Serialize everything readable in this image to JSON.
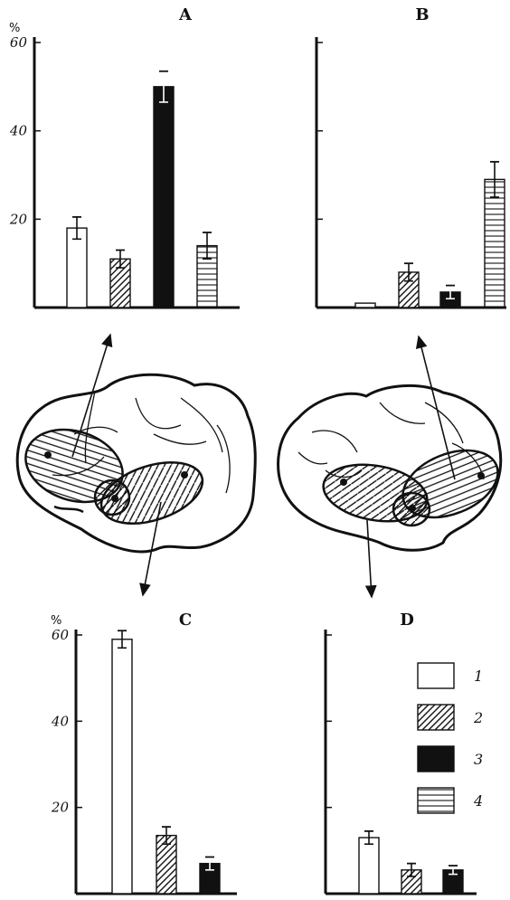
{
  "chart_data": [
    {
      "type": "bar",
      "panel": "A",
      "unit": "%",
      "ylim": [
        0,
        60
      ],
      "yticks": [
        20,
        40,
        60
      ],
      "ytick_labels": [
        "20",
        "40",
        "60"
      ],
      "categories": [
        "1",
        "2",
        "3",
        "4"
      ],
      "values": [
        18,
        11,
        50,
        14
      ],
      "errors": [
        2.5,
        2,
        3.5,
        3
      ]
    },
    {
      "type": "bar",
      "panel": "B",
      "unit": "",
      "ylim": [
        0,
        60
      ],
      "yticks": [
        20,
        40,
        60
      ],
      "ytick_labels": [],
      "categories": [
        "1",
        "2",
        "3",
        "4"
      ],
      "values": [
        1,
        8,
        3.5,
        29
      ],
      "errors": [
        0,
        2,
        1.5,
        4
      ]
    },
    {
      "type": "bar",
      "panel": "C",
      "unit": "%",
      "ylim": [
        0,
        60
      ],
      "yticks": [
        20,
        40,
        60
      ],
      "ytick_labels": [
        "20",
        "40",
        "60"
      ],
      "categories": [
        "1",
        "2",
        "3"
      ],
      "values": [
        59,
        13.5,
        7
      ],
      "errors": [
        2,
        2,
        1.5
      ]
    },
    {
      "type": "bar",
      "panel": "D",
      "unit": "",
      "ylim": [
        0,
        60
      ],
      "yticks": [
        20,
        40,
        60
      ],
      "ytick_labels": [],
      "categories": [
        "1",
        "2",
        "3"
      ],
      "values": [
        13,
        5.5,
        5.5
      ],
      "errors": [
        1.5,
        1.5,
        1
      ]
    }
  ],
  "legend": [
    {
      "label": "1",
      "pattern": "white"
    },
    {
      "label": "2",
      "pattern": "diagonal"
    },
    {
      "label": "3",
      "pattern": "black"
    },
    {
      "label": "4",
      "pattern": "horizontal"
    }
  ],
  "colors": {
    "ink": "#111111",
    "paper": "#ffffff"
  }
}
